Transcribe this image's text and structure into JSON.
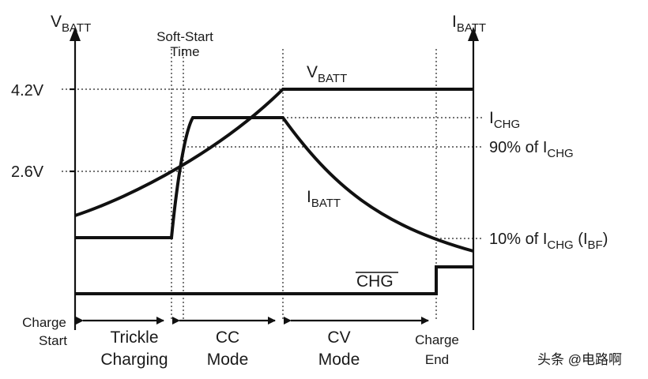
{
  "left_axis": {
    "main": "V",
    "sub": "BATT"
  },
  "right_axis": {
    "main": "I",
    "sub": "BATT"
  },
  "left_ticks": {
    "v_high": "4.2V",
    "v_mid": "2.6V"
  },
  "soft_start": {
    "line1": "Soft-Start",
    "line2": "Time"
  },
  "curve_labels": {
    "vbatt": {
      "main": "V",
      "sub": "BATT"
    },
    "ibatt": {
      "main": "I",
      "sub": "BATT"
    },
    "chg": "CHG"
  },
  "right_ticks": {
    "ichg": {
      "main": "I",
      "sub": "CHG"
    },
    "ichg_90": {
      "prefix": "90% of I",
      "sub": "CHG"
    },
    "ichg_10": {
      "prefix": "10% of I",
      "sub1": "CHG",
      "mid": " (I",
      "sub2": "BF",
      "end": ")"
    }
  },
  "phases": {
    "charge_start": {
      "line1": "Charge",
      "line2": "Start"
    },
    "trickle": {
      "line1": "Trickle",
      "line2": "Charging"
    },
    "cc": {
      "line1": "CC",
      "line2": "Mode"
    },
    "cv": {
      "line1": "CV",
      "line2": "Mode"
    },
    "charge_end": {
      "line1": "Charge",
      "line2": "End"
    }
  },
  "watermark": "头条 @电路啊"
}
